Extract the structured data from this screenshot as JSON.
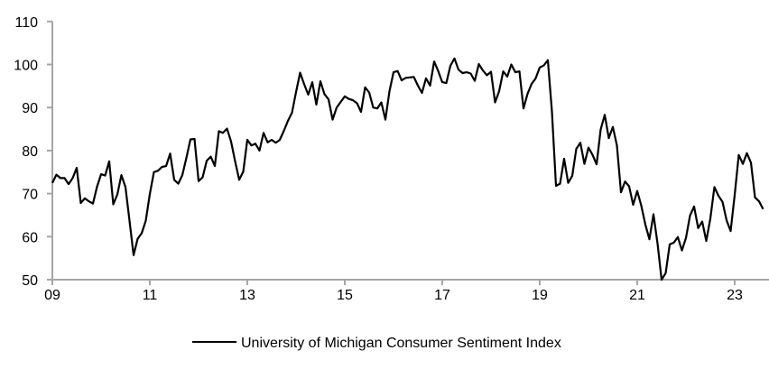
{
  "chart_data": {
    "type": "line",
    "title": "",
    "xlabel": "",
    "ylabel": "",
    "ylim": [
      50,
      110
    ],
    "yticks": [
      "50",
      "60",
      "70",
      "80",
      "90",
      "100",
      "110"
    ],
    "xticks": [
      "09",
      "11",
      "13",
      "15",
      "17",
      "19",
      "21",
      "23"
    ],
    "xlim_years": [
      9,
      23.6
    ],
    "frequency": "monthly",
    "x_start_year": 9,
    "grid": false,
    "legend_position": "bottom",
    "line_color": "#000000",
    "axis_color": "#a6a6a6",
    "series": [
      {
        "name": "University of Michigan Consumer Sentiment Index",
        "values": [
          72.5,
          74.4,
          73.6,
          73.6,
          72.2,
          73.6,
          76.0,
          67.8,
          68.9,
          68.2,
          67.7,
          71.6,
          74.5,
          74.2,
          77.5,
          67.5,
          69.8,
          74.3,
          71.5,
          63.7,
          55.7,
          59.5,
          60.8,
          63.7,
          69.9,
          75.0,
          75.3,
          76.2,
          76.4,
          79.3,
          73.2,
          72.3,
          74.3,
          78.3,
          82.6,
          82.7,
          72.9,
          73.8,
          77.6,
          78.6,
          76.4,
          84.5,
          84.1,
          85.1,
          82.1,
          77.5,
          73.2,
          75.1,
          82.5,
          81.2,
          81.6,
          80.0,
          84.1,
          81.9,
          82.5,
          81.8,
          82.5,
          84.6,
          86.9,
          88.8,
          93.6,
          98.1,
          95.4,
          93.0,
          95.9,
          90.7,
          96.1,
          93.1,
          91.9,
          87.2,
          90.0,
          91.3,
          92.6,
          92.0,
          91.7,
          91.0,
          89.0,
          94.7,
          93.5,
          90.0,
          89.8,
          91.2,
          87.2,
          93.8,
          98.2,
          98.5,
          96.3,
          96.9,
          97.0,
          97.1,
          95.1,
          93.4,
          96.8,
          95.1,
          100.7,
          98.5,
          95.9,
          95.7,
          99.7,
          101.4,
          98.8,
          98.0,
          98.2,
          97.9,
          96.2,
          100.1,
          98.6,
          97.5,
          98.3,
          91.2,
          93.8,
          98.4,
          97.2,
          100.0,
          98.2,
          98.4,
          89.8,
          93.2,
          95.5,
          96.8,
          99.3,
          99.8,
          101.0,
          89.1,
          71.8,
          72.3,
          78.1,
          72.5,
          74.1,
          80.4,
          81.8,
          76.9,
          80.7,
          79.0,
          76.8,
          84.9,
          88.3,
          82.9,
          85.5,
          81.2,
          70.3,
          72.8,
          71.7,
          67.4,
          70.6,
          67.2,
          62.8,
          59.4,
          65.2,
          58.4,
          50.0,
          51.5,
          58.2,
          58.6,
          59.9,
          56.8,
          59.7,
          64.9,
          67.0,
          62.0,
          63.5,
          59.0,
          64.2,
          71.5,
          69.5,
          68.1,
          63.8,
          61.3,
          69.7,
          79.0,
          76.9,
          79.4,
          77.2,
          69.1,
          68.2,
          66.4
        ]
      }
    ]
  }
}
